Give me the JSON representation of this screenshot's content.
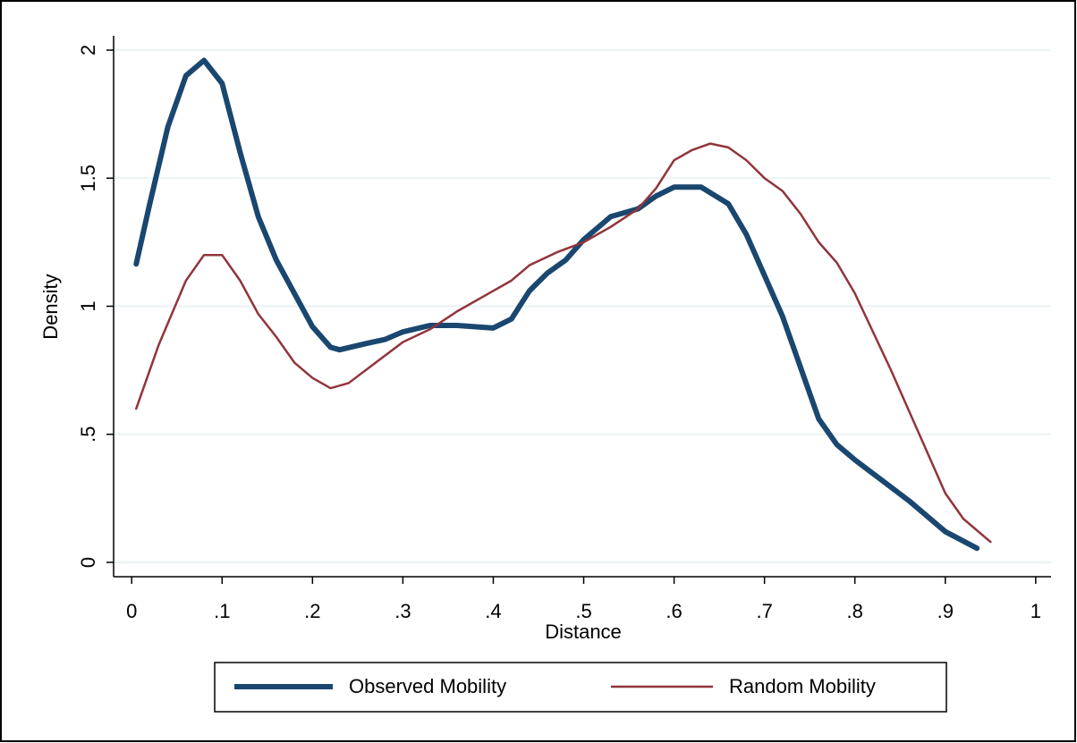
{
  "chart_data": {
    "type": "line",
    "x_label": "Distance",
    "y_label": "Density",
    "xlim": [
      -0.02,
      1.017
    ],
    "ylim": [
      -0.056,
      2.056
    ],
    "xticks": [
      0,
      {
        "value": 0.1,
        "label": ".1"
      },
      {
        "value": 0.2,
        "label": ".2"
      },
      {
        "value": 0.3,
        "label": ".3"
      },
      {
        "value": 0.4,
        "label": ".4"
      },
      {
        "value": 0.5,
        "label": ".5"
      },
      {
        "value": 0.6,
        "label": ".6"
      },
      {
        "value": 0.7,
        "label": ".7"
      },
      {
        "value": 0.8,
        "label": ".8"
      },
      {
        "value": 0.9,
        "label": ".9"
      },
      1
    ],
    "yticks": [
      0,
      {
        "value": 0.5,
        "label": ".5"
      },
      1,
      1.5,
      2
    ],
    "grid": true,
    "legend": "bottom",
    "series": [
      {
        "name": "Observed Mobility",
        "color": "#1a476f",
        "width": 6,
        "x": [
          0.005,
          0.02,
          0.04,
          0.06,
          0.08,
          0.1,
          0.12,
          0.14,
          0.16,
          0.18,
          0.2,
          0.22,
          0.23,
          0.26,
          0.28,
          0.3,
          0.33,
          0.36,
          0.4,
          0.42,
          0.44,
          0.46,
          0.48,
          0.5,
          0.53,
          0.56,
          0.58,
          0.6,
          0.63,
          0.66,
          0.68,
          0.7,
          0.72,
          0.74,
          0.76,
          0.78,
          0.8,
          0.83,
          0.86,
          0.9,
          0.935
        ],
        "values": [
          1.165,
          1.4,
          1.7,
          1.9,
          1.96,
          1.87,
          1.6,
          1.35,
          1.18,
          1.05,
          0.92,
          0.84,
          0.83,
          0.855,
          0.87,
          0.9,
          0.925,
          0.925,
          0.915,
          0.95,
          1.06,
          1.13,
          1.18,
          1.26,
          1.35,
          1.38,
          1.43,
          1.465,
          1.465,
          1.4,
          1.28,
          1.12,
          0.96,
          0.76,
          0.56,
          0.46,
          0.4,
          0.32,
          0.24,
          0.12,
          0.055
        ]
      },
      {
        "name": "Random Mobility",
        "color": "#90353b",
        "width": 2.5,
        "x": [
          0.005,
          0.03,
          0.06,
          0.08,
          0.1,
          0.12,
          0.14,
          0.16,
          0.18,
          0.2,
          0.22,
          0.24,
          0.27,
          0.3,
          0.33,
          0.36,
          0.4,
          0.42,
          0.44,
          0.47,
          0.5,
          0.53,
          0.56,
          0.58,
          0.6,
          0.62,
          0.64,
          0.66,
          0.68,
          0.7,
          0.72,
          0.74,
          0.76,
          0.78,
          0.8,
          0.82,
          0.84,
          0.86,
          0.88,
          0.9,
          0.92,
          0.95
        ],
        "values": [
          0.6,
          0.85,
          1.1,
          1.2,
          1.2,
          1.1,
          0.97,
          0.88,
          0.78,
          0.72,
          0.68,
          0.7,
          0.78,
          0.86,
          0.91,
          0.98,
          1.06,
          1.1,
          1.16,
          1.21,
          1.25,
          1.31,
          1.38,
          1.46,
          1.57,
          1.61,
          1.635,
          1.62,
          1.57,
          1.5,
          1.45,
          1.36,
          1.25,
          1.17,
          1.05,
          0.9,
          0.75,
          0.59,
          0.43,
          0.27,
          0.17,
          0.08
        ]
      }
    ]
  }
}
